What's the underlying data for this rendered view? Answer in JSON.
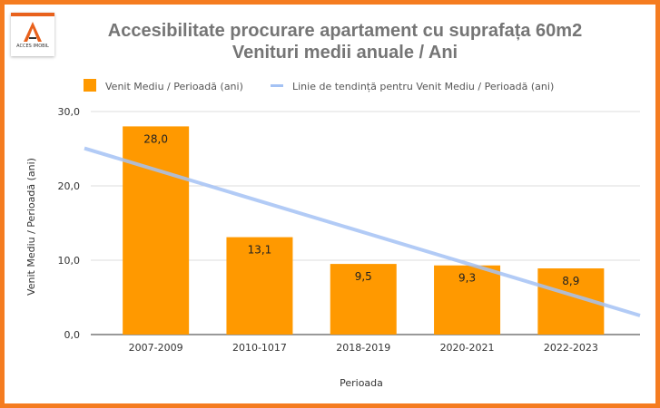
{
  "logo": {
    "text": "ACCES IMOBIL"
  },
  "chart_data": {
    "type": "bar",
    "title": "Accesibilitate procurare apartament cu suprafața 60m2",
    "subtitle": "Venituri medii anuale / Ani",
    "categories": [
      "2007-2009",
      "2010-1017",
      "2018-2019",
      "2020-2021",
      "2022-2023"
    ],
    "series": [
      {
        "name": "Venit Mediu / Perioadă (ani)",
        "values": [
          28.0,
          13.1,
          9.5,
          9.3,
          8.9
        ],
        "color": "#ff9900"
      }
    ],
    "data_labels": [
      "28,0",
      "13,1",
      "9,5",
      "9,3",
      "8,9"
    ],
    "trendline": {
      "name": "Linie de tendință pentru Venit Mediu / Perioadă (ani)",
      "type": "linear",
      "color": "#a4c2f4"
    },
    "xlabel": "Perioada",
    "ylabel": "Venit Mediu / Perioadă (ani)",
    "ylim": [
      0,
      30
    ],
    "yticks": [
      "0,0",
      "10,0",
      "20,0",
      "30,0"
    ],
    "grid": true,
    "legend": "top"
  }
}
